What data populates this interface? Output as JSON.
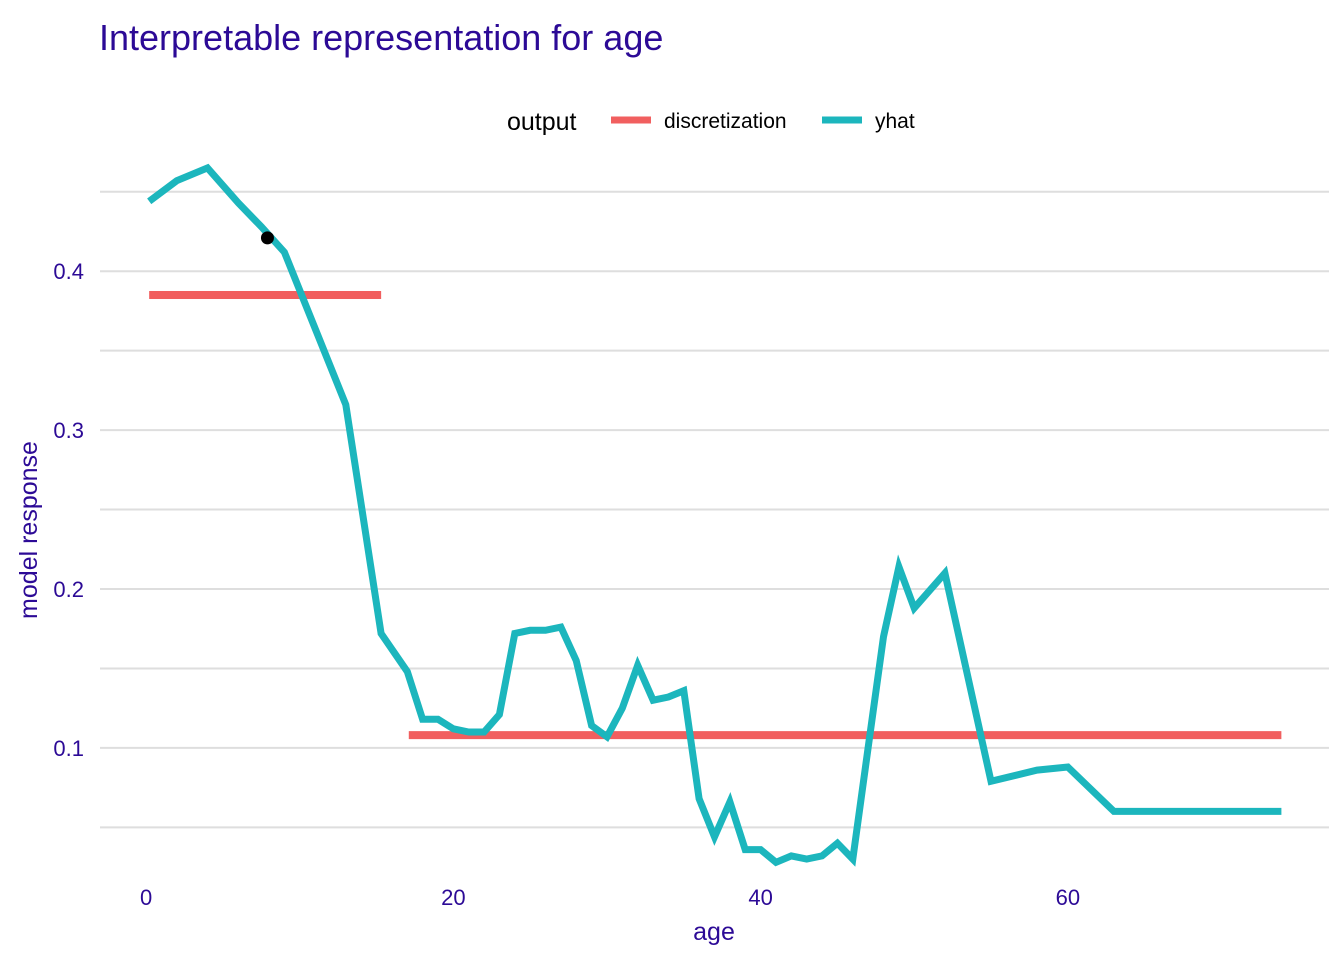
{
  "chart_data": {
    "type": "line",
    "title": "Interpretable representation for age",
    "xlabel": "age",
    "ylabel": "model response",
    "xlim": [
      -3,
      77
    ],
    "ylim": [
      0.02,
      0.47
    ],
    "x_ticks": [
      0,
      20,
      40,
      60
    ],
    "x_tick_labels": [
      "0",
      "20",
      "40",
      "60"
    ],
    "y_ticks": [
      0.1,
      0.2,
      0.3,
      0.4
    ],
    "y_tick_labels": [
      "0.1",
      "0.2",
      "0.3",
      "0.4"
    ],
    "y_minor_gridlines": [
      0.05,
      0.15,
      0.25,
      0.35,
      0.45
    ],
    "grid": true,
    "legend": {
      "title": "output",
      "position": "top",
      "entries": [
        "discretization",
        "yhat"
      ]
    },
    "colors": {
      "discretization": "#f15f5f",
      "yhat": "#1cb6bd",
      "text": "#2c0a96",
      "grid": "#dedede",
      "point": "#000000"
    },
    "series": [
      {
        "name": "discretization",
        "type": "segments",
        "segments": [
          {
            "x": [
              0.2,
              15.3
            ],
            "y": 0.385
          },
          {
            "x": [
              17.1,
              73.9
            ],
            "y": 0.108
          }
        ]
      },
      {
        "name": "yhat",
        "type": "line",
        "x": [
          0.2,
          2,
          4,
          6,
          7.5,
          9,
          11,
          13,
          15.3,
          17,
          18,
          19,
          20,
          21,
          22,
          23,
          24,
          25,
          26,
          27,
          28,
          29,
          30,
          31,
          32,
          33,
          34,
          35,
          36,
          37,
          38,
          39,
          40,
          41,
          42,
          43,
          44,
          45,
          46,
          47,
          48,
          49,
          50,
          52,
          55,
          58,
          60,
          63,
          65,
          70,
          73.9
        ],
        "y": [
          0.444,
          0.457,
          0.465,
          0.443,
          0.428,
          0.412,
          0.364,
          0.316,
          0.172,
          0.148,
          0.118,
          0.118,
          0.112,
          0.11,
          0.11,
          0.121,
          0.172,
          0.174,
          0.174,
          0.176,
          0.155,
          0.114,
          0.107,
          0.125,
          0.152,
          0.13,
          0.132,
          0.136,
          0.068,
          0.044,
          0.066,
          0.036,
          0.036,
          0.028,
          0.032,
          0.03,
          0.032,
          0.04,
          0.03,
          0.1,
          0.17,
          0.214,
          0.188,
          0.21,
          0.079,
          0.086,
          0.088,
          0.06,
          0.06,
          0.06,
          0.06
        ]
      }
    ],
    "highlight_point": {
      "x": 7.9,
      "y": 0.421
    }
  }
}
